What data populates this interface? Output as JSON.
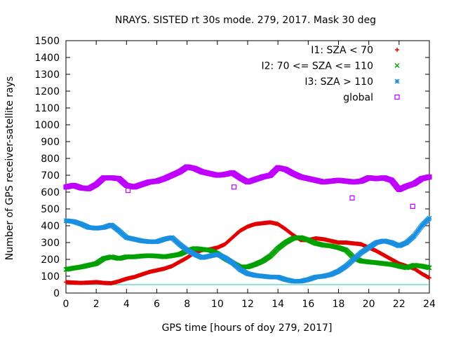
{
  "chart_data": {
    "type": "scatter",
    "title": "NRAYS. SISTED rt 30s mode. 279, 2017. Mask 30 deg",
    "xlabel": "GPS time [hours of doy 279, 2017]",
    "ylabel": "Number of GPS receiver-satellite rays",
    "xlim": [
      0,
      24
    ],
    "ylim": [
      0,
      1500
    ],
    "x_ticks": [
      0,
      2,
      4,
      6,
      8,
      10,
      12,
      14,
      16,
      18,
      20,
      22,
      24
    ],
    "y_ticks": [
      0,
      100,
      200,
      300,
      400,
      500,
      600,
      700,
      800,
      900,
      1000,
      1100,
      1200,
      1300,
      1400,
      1500
    ],
    "legend_position": "top-right",
    "baseline": {
      "value": 50,
      "color": "#2ec4b6"
    },
    "series": [
      {
        "name": "I1: SZA < 70",
        "marker": "+",
        "color": "#e00000",
        "x": [
          0,
          0.5,
          1,
          1.5,
          2,
          2.5,
          3,
          3.5,
          4,
          4.5,
          5,
          5.5,
          6,
          6.5,
          7,
          7.5,
          8,
          8.5,
          9,
          9.5,
          10,
          10.5,
          11,
          11.5,
          12,
          12.5,
          13,
          13.5,
          14,
          14.5,
          15,
          15.5,
          16,
          16.5,
          17,
          17.5,
          18,
          18.5,
          19,
          19.5,
          20,
          20.5,
          21,
          21.5,
          22,
          22.5,
          23,
          23.5,
          24
        ],
        "y": [
          65,
          62,
          60,
          62,
          65,
          60,
          58,
          70,
          85,
          95,
          110,
          125,
          135,
          145,
          160,
          185,
          210,
          240,
          255,
          260,
          270,
          290,
          330,
          370,
          395,
          410,
          415,
          420,
          410,
          380,
          345,
          315,
          315,
          325,
          320,
          310,
          300,
          300,
          295,
          290,
          270,
          250,
          225,
          200,
          175,
          160,
          145,
          115,
          90
        ]
      },
      {
        "name": "I2: 70 <= SZA <= 110",
        "marker": "x",
        "color": "#00a000",
        "x": [
          0,
          0.5,
          1,
          1.5,
          2,
          2.5,
          3,
          3.5,
          4,
          4.5,
          5,
          5.5,
          6,
          6.5,
          7,
          7.5,
          8,
          8.5,
          9,
          9.5,
          10,
          10.5,
          11,
          11.5,
          12,
          12.5,
          13,
          13.5,
          14,
          14.5,
          15,
          15.5,
          16,
          16.5,
          17,
          17.5,
          18,
          18.5,
          19,
          19.5,
          20,
          20.5,
          21,
          21.5,
          22,
          22.5,
          23,
          23.5,
          24
        ],
        "y": [
          140,
          148,
          155,
          165,
          175,
          205,
          215,
          205,
          215,
          215,
          220,
          222,
          220,
          215,
          222,
          230,
          250,
          265,
          260,
          255,
          235,
          205,
          180,
          155,
          155,
          170,
          190,
          220,
          265,
          300,
          325,
          330,
          315,
          295,
          285,
          280,
          270,
          255,
          210,
          190,
          185,
          180,
          175,
          170,
          160,
          150,
          165,
          160,
          150
        ]
      },
      {
        "name": "I3: SZA > 110",
        "marker": "*",
        "color": "#1a8fe0",
        "x": [
          0,
          0.5,
          1,
          1.5,
          2,
          2.5,
          3,
          3.5,
          4,
          4.5,
          5,
          5.5,
          6,
          6.5,
          7,
          7.5,
          8,
          8.5,
          9,
          9.5,
          10,
          10.5,
          11,
          11.5,
          12,
          12.5,
          13,
          13.5,
          14,
          14.5,
          15,
          15.5,
          16,
          16.5,
          17,
          17.5,
          18,
          18.5,
          19,
          19.5,
          20,
          20.5,
          21,
          21.5,
          22,
          22.5,
          23,
          23.5,
          24
        ],
        "y": [
          430,
          425,
          410,
          390,
          385,
          390,
          405,
          370,
          330,
          320,
          310,
          305,
          305,
          320,
          330,
          290,
          255,
          230,
          210,
          220,
          230,
          210,
          180,
          140,
          115,
          105,
          100,
          95,
          95,
          80,
          70,
          70,
          80,
          95,
          100,
          110,
          130,
          160,
          200,
          240,
          270,
          300,
          310,
          300,
          280,
          300,
          340,
          400,
          445
        ]
      },
      {
        "name": "global",
        "marker": "square",
        "color": "#c000ff",
        "x": [
          0,
          0.5,
          1,
          1.5,
          2,
          2.5,
          3,
          3.5,
          4,
          4.5,
          5,
          5.5,
          6,
          6.5,
          7,
          7.5,
          8,
          8.5,
          9,
          9.5,
          10,
          10.5,
          11,
          11.5,
          12,
          12.5,
          13,
          13.5,
          14,
          14.5,
          15,
          15.5,
          16,
          16.5,
          17,
          17.5,
          18,
          18.5,
          19,
          19.5,
          20,
          20.5,
          21,
          21.5,
          22,
          22.5,
          23,
          23.5,
          24
        ],
        "y": [
          630,
          640,
          625,
          620,
          645,
          685,
          685,
          680,
          640,
          630,
          645,
          660,
          665,
          680,
          700,
          720,
          750,
          740,
          720,
          710,
          700,
          705,
          715,
          685,
          660,
          675,
          690,
          700,
          745,
          735,
          710,
          690,
          680,
          670,
          660,
          665,
          670,
          665,
          660,
          665,
          685,
          680,
          685,
          670,
          615,
          635,
          650,
          680,
          690
        ]
      }
    ],
    "outliers": [
      {
        "series": "global",
        "x": 22.9,
        "y": 515
      },
      {
        "series": "global",
        "x": 18.9,
        "y": 565
      },
      {
        "series": "global",
        "x": 4.1,
        "y": 610
      },
      {
        "series": "global",
        "x": 11.1,
        "y": 630
      }
    ]
  }
}
